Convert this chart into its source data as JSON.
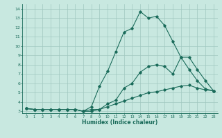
{
  "bg_color": "#c8e8e0",
  "grid_color": "#a0c8c0",
  "line_color": "#1a6b5a",
  "x_label": "Humidex (Indice chaleur)",
  "x_ticks": [
    0,
    1,
    2,
    3,
    4,
    5,
    6,
    7,
    8,
    9,
    10,
    11,
    12,
    13,
    14,
    15,
    16,
    17,
    18,
    19,
    20,
    21,
    22,
    23
  ],
  "y_ticks": [
    3,
    4,
    5,
    6,
    7,
    8,
    9,
    10,
    11,
    12,
    13,
    14
  ],
  "ylim": [
    2.8,
    14.5
  ],
  "xlim": [
    -0.5,
    23.5
  ],
  "curve1_x": [
    0,
    1,
    2,
    3,
    4,
    5,
    6,
    7,
    8,
    9,
    10,
    11,
    12,
    13,
    14,
    15,
    16,
    17,
    18,
    19,
    20,
    21,
    22,
    23
  ],
  "curve1_y": [
    3.3,
    3.2,
    3.2,
    3.2,
    3.2,
    3.2,
    3.2,
    3.0,
    3.0,
    3.2,
    3.5,
    3.8,
    4.1,
    4.4,
    4.7,
    5.0,
    5.1,
    5.3,
    5.5,
    5.7,
    5.8,
    5.5,
    5.3,
    5.2
  ],
  "curve2_x": [
    0,
    1,
    2,
    3,
    4,
    5,
    6,
    7,
    8,
    9,
    10,
    11,
    12,
    13,
    14,
    15,
    16,
    17,
    18,
    19,
    20,
    21,
    22,
    23
  ],
  "curve2_y": [
    3.3,
    3.2,
    3.2,
    3.2,
    3.2,
    3.2,
    3.2,
    3.0,
    3.5,
    5.7,
    7.3,
    9.4,
    11.5,
    11.9,
    13.7,
    13.0,
    13.2,
    12.2,
    10.5,
    8.8,
    7.5,
    6.3,
    5.4,
    5.2
  ],
  "curve3_x": [
    0,
    1,
    2,
    3,
    4,
    5,
    6,
    7,
    8,
    9,
    10,
    11,
    12,
    13,
    14,
    15,
    16,
    17,
    18,
    19,
    20,
    21,
    22,
    23
  ],
  "curve3_y": [
    3.3,
    3.2,
    3.2,
    3.2,
    3.2,
    3.2,
    3.2,
    3.0,
    3.2,
    3.2,
    3.8,
    4.2,
    5.5,
    6.0,
    7.2,
    7.8,
    8.0,
    7.8,
    7.0,
    8.8,
    8.8,
    7.5,
    6.3,
    5.2
  ]
}
